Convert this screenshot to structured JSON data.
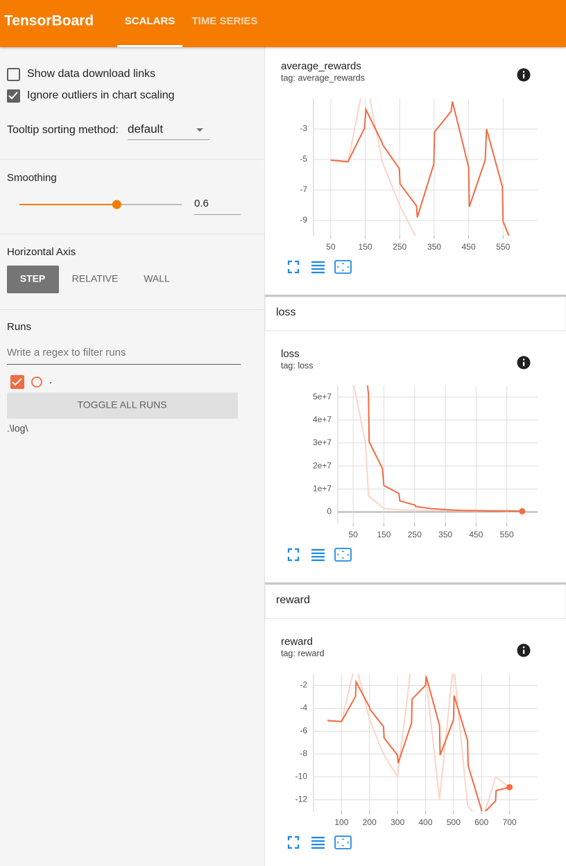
{
  "header": {
    "title": "TensorBoard",
    "tabs": [
      "SCALARS",
      "TIME SERIES"
    ],
    "active_tab": 0
  },
  "sidebar": {
    "checkboxes": [
      {
        "label": "Show data download links",
        "checked": false
      },
      {
        "label": "Ignore outliers in chart scaling",
        "checked": true
      }
    ],
    "tooltip_sorting": {
      "label": "Tooltip sorting method:",
      "value": "default"
    },
    "smoothing": {
      "label": "Smoothing",
      "value": 0.6
    },
    "horizontal_axis": {
      "label": "Horizontal Axis",
      "options": [
        "STEP",
        "RELATIVE",
        "WALL"
      ],
      "selected": 0
    },
    "runs": {
      "label": "Runs",
      "filter_placeholder": "Write a regex to filter runs",
      "items": [
        {
          "name": ".",
          "checked": true
        }
      ],
      "toggle": "TOGGLE ALL RUNS",
      "logdir": ".\\log\\"
    }
  },
  "chart_data": [
    {
      "type": "line",
      "title": "average_rewards",
      "subtitle": "tag: average_rewards",
      "xlim": [
        0,
        650
      ],
      "xticks": [
        50,
        150,
        250,
        350,
        450,
        550
      ],
      "ylim": [
        -10,
        -1
      ],
      "yticks": [
        -3,
        -5,
        -7,
        -9
      ],
      "grid": true,
      "series": [
        {
          "color": "#fcd5c8",
          "x": [
            50,
            100,
            150,
            200,
            250,
            300
          ],
          "values": [
            -5,
            -5.2,
            0.5,
            -5.2,
            -8,
            -10.2
          ]
        },
        {
          "color": "#f26b42",
          "x": [
            50,
            100,
            148,
            152,
            199,
            201,
            249,
            251,
            299,
            301,
            349,
            351,
            399,
            403,
            450,
            452,
            498,
            502,
            548,
            550,
            570
          ],
          "values": [
            -5.05,
            -5.14,
            -2.95,
            -1.73,
            -3.9,
            -4.05,
            -5.6,
            -6.6,
            -8.05,
            -8.8,
            -5.3,
            -3.2,
            -1.85,
            -1.2,
            -5.5,
            -8.1,
            -5.05,
            -3.0,
            -6.8,
            -9.05,
            -10.2
          ]
        }
      ]
    },
    {
      "type": "line",
      "section": "loss",
      "title": "loss",
      "subtitle": "tag: loss",
      "xlim": [
        0,
        650
      ],
      "xticks": [
        50,
        150,
        250,
        350,
        450,
        550
      ],
      "ylim": [
        -5000000,
        55000000
      ],
      "yticks": [
        0,
        {
          "value": 10000000,
          "label": "1e+7"
        },
        {
          "value": 20000000,
          "label": "2e+7"
        },
        {
          "value": 30000000,
          "label": "3e+7"
        },
        {
          "value": 40000000,
          "label": "4e+7"
        },
        {
          "value": 50000000,
          "label": "5e+7"
        }
      ],
      "grid": true,
      "series": [
        {
          "color": "#fcd5c8",
          "x": [
            45,
            90,
            100,
            150,
            200,
            250,
            300,
            350,
            400,
            450,
            500,
            550,
            600
          ],
          "values": [
            60000000,
            30000000,
            7000000,
            1500000,
            1000000,
            800000,
            600000,
            500000,
            400000,
            400000,
            400000,
            300000,
            300000
          ]
        },
        {
          "color": "#f26b42",
          "x": [
            85,
            100,
            102,
            145,
            150,
            199,
            202,
            251,
            253,
            301,
            351,
            401,
            450,
            500,
            550,
            600
          ],
          "values": [
            70000000,
            51000000,
            30500000,
            19000000,
            11500000,
            8000000,
            4800000,
            3000000,
            2400000,
            1500000,
            1000000,
            700000,
            600000,
            500000,
            500000,
            300000
          ]
        }
      ]
    },
    {
      "type": "line",
      "section": "reward",
      "title": "reward",
      "subtitle": "tag: reward",
      "xlim": [
        0,
        800
      ],
      "xticks": [
        100,
        200,
        300,
        400,
        500,
        600,
        700
      ],
      "ylim": [
        -13,
        -1
      ],
      "yticks": [
        -2,
        -4,
        -6,
        -8,
        -10,
        -12
      ],
      "grid": true,
      "series": [
        {
          "color": "#fcd5c8",
          "x": [
            50,
            100,
            150,
            200,
            250,
            300,
            350,
            400,
            450,
            500,
            550,
            600,
            650,
            700
          ],
          "values": [
            -5,
            -5.2,
            0,
            -5,
            -8,
            -10,
            0,
            -1,
            -12,
            0,
            -12.5,
            -14,
            -10,
            -10.9
          ]
        },
        {
          "color": "#f26b42",
          "x": [
            50,
            100,
            150,
            152,
            200,
            202,
            250,
            252,
            300,
            302,
            350,
            352,
            400,
            402,
            450,
            452,
            500,
            502,
            550,
            552,
            600,
            602,
            650,
            652,
            700
          ],
          "values": [
            -5.09,
            -5.15,
            -2.97,
            -1.7,
            -3.9,
            -4.1,
            -5.6,
            -6.6,
            -8.1,
            -8.8,
            -5.3,
            -3.2,
            -2.0,
            -1.2,
            -5.5,
            -8.1,
            -5.0,
            -2.9,
            -6.8,
            -9.0,
            -12.9,
            -13.3,
            -12.1,
            -11.2,
            -10.9
          ]
        }
      ]
    }
  ]
}
